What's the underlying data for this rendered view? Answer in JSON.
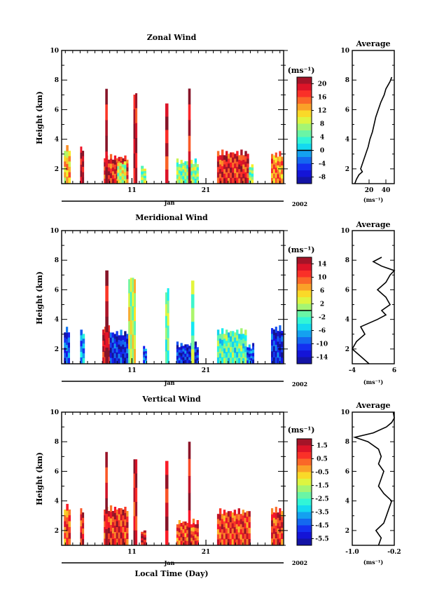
{
  "common": {
    "height_label": "Height (km)",
    "units_label": "(ms⁻¹)",
    "average_title": "Average",
    "month_label": "Jan",
    "year_label": "2002",
    "time_label": "Local Time (Day)",
    "y_range": [
      1,
      10
    ],
    "y_ticks": [
      "2",
      "4",
      "6",
      "8",
      "10"
    ],
    "x_ticks": [
      "11",
      "21"
    ],
    "x_tick_values": [
      11,
      21
    ],
    "x_range": [
      1.5,
      31.5
    ]
  },
  "chart_data": [
    {
      "type": "heatmap",
      "title": "Zonal Wind",
      "ylabel": "Height (km)",
      "xlabel": "Local Time (Day)",
      "ylim": [
        1,
        10
      ],
      "colorbar": {
        "labels": [
          "20",
          "16",
          "12",
          "8",
          "4",
          "0",
          "-4",
          "-8"
        ],
        "min": -10,
        "max": 22,
        "zero_line": 0
      },
      "profile": {
        "xlim": [
          0,
          50
        ],
        "x_ticks": [
          "20",
          "40"
        ],
        "x_tick_values": [
          20,
          40
        ],
        "heights": [
          1.0,
          1.3,
          1.6,
          1.8,
          2.0,
          2.5,
          3.0,
          3.5,
          4.0,
          4.5,
          5.0,
          5.5,
          6.0,
          6.5,
          7.0,
          7.4,
          7.6,
          7.9,
          8.2
        ],
        "values": [
          3,
          5,
          8,
          12,
          10,
          13,
          16,
          19,
          21,
          24,
          26,
          28,
          31,
          34,
          38,
          40,
          42,
          45,
          47
        ]
      },
      "blocks": [
        {
          "d0": 1.8,
          "d1": 2.7,
          "top": 3.6,
          "val": 12
        },
        {
          "d0": 4.0,
          "d1": 4.5,
          "top": 3.6,
          "val": 20
        },
        {
          "d0": 7.2,
          "d1": 10.5,
          "top": 3.0,
          "val": 18
        },
        {
          "d0": 7.4,
          "d1": 7.7,
          "top": 7.6,
          "val": 20
        },
        {
          "d0": 9.0,
          "d1": 10.2,
          "top": 2.6,
          "val": 8
        },
        {
          "d0": 11.2,
          "d1": 11.7,
          "top": 7.3,
          "val": 20
        },
        {
          "d0": 12.2,
          "d1": 12.9,
          "top": 2.3,
          "val": 6
        },
        {
          "d0": 15.5,
          "d1": 15.9,
          "top": 6.8,
          "val": 20
        },
        {
          "d0": 17.0,
          "d1": 20.0,
          "top": 2.7,
          "val": 6
        },
        {
          "d0": 18.6,
          "d1": 18.9,
          "top": 7.8,
          "val": 20
        },
        {
          "d0": 22.5,
          "d1": 26.8,
          "top": 3.3,
          "val": 18
        },
        {
          "d0": 26.8,
          "d1": 27.4,
          "top": 2.4,
          "val": 6
        },
        {
          "d0": 29.8,
          "d1": 31.4,
          "top": 3.2,
          "val": 14
        }
      ]
    },
    {
      "type": "heatmap",
      "title": "Meridional Wind",
      "ylabel": "Height (km)",
      "xlabel": "Local Time (Day)",
      "ylim": [
        1,
        10
      ],
      "colorbar": {
        "labels": [
          "14",
          "10",
          "6",
          "2",
          "-2",
          "-6",
          "-10",
          "-14"
        ],
        "min": -16,
        "max": 16,
        "zero_line": 0
      },
      "profile": {
        "xlim": [
          -4,
          6
        ],
        "x_ticks": [
          "-4",
          "6"
        ],
        "x_tick_values": [
          -4,
          6
        ],
        "heights": [
          1.0,
          1.5,
          2.0,
          2.5,
          3.0,
          3.5,
          4.0,
          4.3,
          4.6,
          5.0,
          5.5,
          6.0,
          6.5,
          7.0,
          7.3,
          7.6,
          7.9,
          8.2
        ],
        "values": [
          0,
          -2,
          -4,
          -3,
          -1,
          -2,
          2,
          4,
          3,
          5,
          4,
          2,
          4,
          5,
          6,
          3,
          1,
          3
        ]
      },
      "blocks": [
        {
          "d0": 1.8,
          "d1": 2.6,
          "top": 3.5,
          "val": -10
        },
        {
          "d0": 4.0,
          "d1": 4.6,
          "top": 3.4,
          "val": -8
        },
        {
          "d0": 7.0,
          "d1": 8.0,
          "top": 3.6,
          "val": 14
        },
        {
          "d0": 7.4,
          "d1": 7.8,
          "top": 7.5,
          "val": 14
        },
        {
          "d0": 8.0,
          "d1": 10.5,
          "top": 3.3,
          "val": -12
        },
        {
          "d0": 10.5,
          "d1": 11.5,
          "top": 7.0,
          "val": 2
        },
        {
          "d0": 12.5,
          "d1": 13.0,
          "top": 2.3,
          "val": -10
        },
        {
          "d0": 15.5,
          "d1": 16.0,
          "top": 6.2,
          "val": 0
        },
        {
          "d0": 17.0,
          "d1": 20.0,
          "top": 2.5,
          "val": -12
        },
        {
          "d0": 19.0,
          "d1": 19.4,
          "top": 7.0,
          "val": 0
        },
        {
          "d0": 22.5,
          "d1": 26.5,
          "top": 3.4,
          "val": -2
        },
        {
          "d0": 26.5,
          "d1": 27.5,
          "top": 2.4,
          "val": -10
        },
        {
          "d0": 29.8,
          "d1": 31.4,
          "top": 3.6,
          "val": -12
        }
      ]
    },
    {
      "type": "heatmap",
      "title": "Vertical Wind",
      "ylabel": "Height (km)",
      "xlabel": "Local Time (Day)",
      "ylim": [
        1,
        10
      ],
      "colorbar": {
        "labels": [
          "1.5",
          "0.5",
          "-0.5",
          "-1.5",
          "-2.5",
          "-3.5",
          "-4.5",
          "-5.5"
        ],
        "min": -6,
        "max": 2,
        "zero_line": null
      },
      "profile": {
        "xlim": [
          -1.0,
          -0.2
        ],
        "x_ticks": [
          "-1.0",
          "-0.2"
        ],
        "x_tick_values": [
          -1.0,
          -0.2
        ],
        "heights": [
          1.0,
          1.5,
          2.0,
          2.5,
          3.0,
          3.5,
          4.0,
          4.5,
          5.0,
          5.5,
          6.0,
          6.5,
          7.0,
          7.5,
          8.0,
          8.3,
          8.6,
          9.0,
          9.3,
          9.6,
          10.0
        ],
        "values": [
          -0.5,
          -0.45,
          -0.55,
          -0.4,
          -0.35,
          -0.3,
          -0.25,
          -0.4,
          -0.5,
          -0.45,
          -0.4,
          -0.5,
          -0.45,
          -0.5,
          -0.7,
          -0.95,
          -0.6,
          -0.35,
          -0.25,
          -0.2,
          -0.22
        ]
      },
      "blocks": [
        {
          "d0": 1.8,
          "d1": 2.7,
          "top": 3.8,
          "val": 0.5
        },
        {
          "d0": 4.0,
          "d1": 4.5,
          "top": 3.6,
          "val": 0.8
        },
        {
          "d0": 7.2,
          "d1": 10.5,
          "top": 3.7,
          "val": 0.9
        },
        {
          "d0": 7.4,
          "d1": 7.7,
          "top": 7.5,
          "val": 1.2
        },
        {
          "d0": 11.2,
          "d1": 11.7,
          "top": 7.0,
          "val": 1.2
        },
        {
          "d0": 12.2,
          "d1": 12.9,
          "top": 2.2,
          "val": 1.3
        },
        {
          "d0": 15.5,
          "d1": 15.9,
          "top": 6.8,
          "val": 1.4
        },
        {
          "d0": 17.0,
          "d1": 20.0,
          "top": 2.8,
          "val": 0.6
        },
        {
          "d0": 18.6,
          "d1": 18.9,
          "top": 8.0,
          "val": 1.4
        },
        {
          "d0": 22.5,
          "d1": 27.0,
          "top": 3.5,
          "val": 0.7
        },
        {
          "d0": 29.8,
          "d1": 31.4,
          "top": 3.6,
          "val": 0.8
        }
      ]
    }
  ]
}
